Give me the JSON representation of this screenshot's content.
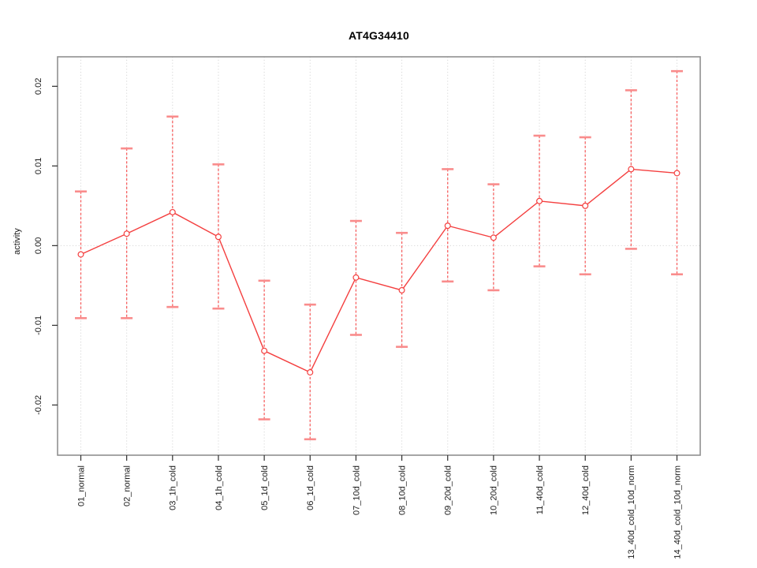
{
  "chart_data": {
    "type": "line",
    "title": "AT4G34410",
    "ylabel": "activity",
    "xlabel": "",
    "legend": "none",
    "categories": [
      "01_normal",
      "02_normal",
      "03_1h_cold",
      "04_1h_cold",
      "05_1d_cold",
      "06_1d_cold",
      "07_10d_cold",
      "08_10d_cold",
      "09_20d_cold",
      "10_20d_cold",
      "11_40d_cold",
      "12_40d_cold",
      "13_40d_cold_10d_norm",
      "14_40d_cold_10d_norm"
    ],
    "series": [
      {
        "name": "activity",
        "marker": "open-circle",
        "means": [
          -0.0011,
          0.0015,
          0.0042,
          0.0011,
          -0.0132,
          -0.0159,
          -0.004,
          -0.0056,
          0.0025,
          0.001,
          0.0056,
          0.005,
          0.0096,
          0.0091
        ],
        "upper": [
          0.0068,
          0.0122,
          0.0162,
          0.0102,
          -0.0044,
          -0.0074,
          0.0031,
          0.0016,
          0.0096,
          0.0077,
          0.0138,
          0.0136,
          0.0195,
          0.0219
        ],
        "lower": [
          -0.0091,
          -0.0091,
          -0.0077,
          -0.0079,
          -0.0218,
          -0.0243,
          -0.0112,
          -0.0127,
          -0.0045,
          -0.0056,
          -0.0026,
          -0.0036,
          -0.0004,
          -0.0036
        ]
      }
    ],
    "ylim": [
      -0.0263,
      0.0237
    ],
    "yticks": [
      -0.02,
      -0.01,
      0,
      0.01,
      0.02
    ],
    "ytick_labels": [
      "-0.02",
      "-0.01",
      "0.00",
      "0.01",
      "0.02"
    ],
    "grid": {
      "vertical": "per-category",
      "horizontal_at": [
        0
      ],
      "style": "dotted"
    },
    "colors": {
      "series": "#f43f3f",
      "error_bar": "#f76060",
      "error_cap": "#f98c8c",
      "marker_fill": "#ffffff",
      "grid": "#d6d6d6",
      "axis_box": "#909090",
      "tick": "#2e2e2e",
      "text": "#1a1a1a",
      "background": "#ffffff"
    }
  }
}
